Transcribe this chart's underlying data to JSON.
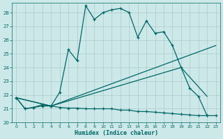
{
  "xlabel": "Humidex (Indice chaleur)",
  "bg_color": "#cce8e8",
  "grid_color": "#aacccc",
  "line_color": "#006666",
  "xlim": [
    -0.5,
    23.5
  ],
  "ylim": [
    20.0,
    28.7
  ],
  "yticks": [
    20,
    21,
    22,
    23,
    24,
    25,
    26,
    27,
    28
  ],
  "xticks": [
    0,
    1,
    2,
    3,
    4,
    5,
    6,
    7,
    8,
    9,
    10,
    11,
    12,
    13,
    14,
    15,
    16,
    17,
    18,
    19,
    20,
    21,
    22,
    23
  ],
  "line1_x": [
    0,
    1,
    2,
    3,
    4,
    5,
    6,
    7,
    8,
    9,
    10,
    11,
    12,
    13,
    14,
    15,
    16,
    17,
    18,
    19,
    20,
    21,
    22
  ],
  "line1_y": [
    21.8,
    21.0,
    21.1,
    21.3,
    21.2,
    22.2,
    25.3,
    24.5,
    28.5,
    27.5,
    28.0,
    28.2,
    28.3,
    28.0,
    26.2,
    27.4,
    26.5,
    26.6,
    25.6,
    24.0,
    22.5,
    21.9,
    20.5
  ],
  "line2_x": [
    0,
    1,
    2,
    3,
    4,
    5,
    6,
    7,
    8,
    9,
    10,
    11,
    12,
    13,
    14,
    15,
    16,
    17,
    18,
    19,
    20,
    21,
    22,
    23
  ],
  "line2_y": [
    21.8,
    21.0,
    21.1,
    21.2,
    21.2,
    21.1,
    21.05,
    21.05,
    21.0,
    21.0,
    21.0,
    21.0,
    20.9,
    20.9,
    20.8,
    20.8,
    20.75,
    20.7,
    20.65,
    20.6,
    20.55,
    20.5,
    20.5,
    20.5
  ],
  "line3_x": [
    0,
    4,
    19,
    22
  ],
  "line3_y": [
    21.8,
    21.2,
    24.0,
    21.9
  ],
  "line4_x": [
    0,
    4,
    23
  ],
  "line4_y": [
    21.8,
    21.2,
    25.6
  ]
}
